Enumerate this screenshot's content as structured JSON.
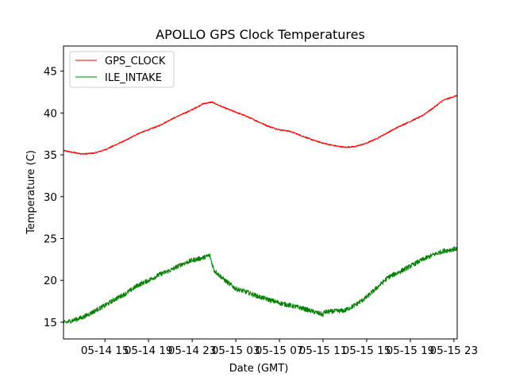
{
  "chart_data": {
    "type": "line",
    "title": "APOLLO GPS Clock Temperatures",
    "xlabel": "Date (GMT)",
    "ylabel": "Temperature (C)",
    "xlim": [
      11.2,
      47.3
    ],
    "ylim": [
      13.0,
      48.0
    ],
    "xticks": [
      {
        "value": 15,
        "label": "05-14 15"
      },
      {
        "value": 19,
        "label": "05-14 19"
      },
      {
        "value": 23,
        "label": "05-14 23"
      },
      {
        "value": 27,
        "label": "05-15 03"
      },
      {
        "value": 31,
        "label": "05-15 07"
      },
      {
        "value": 35,
        "label": "05-15 11"
      },
      {
        "value": 39,
        "label": "05-15 15"
      },
      {
        "value": 43,
        "label": "05-15 19"
      },
      {
        "value": 47,
        "label": "05-15 23"
      }
    ],
    "yticks": [
      {
        "value": 15,
        "label": "15"
      },
      {
        "value": 20,
        "label": "20"
      },
      {
        "value": 25,
        "label": "25"
      },
      {
        "value": 30,
        "label": "30"
      },
      {
        "value": 35,
        "label": "35"
      },
      {
        "value": 40,
        "label": "40"
      },
      {
        "value": 45,
        "label": "45"
      }
    ],
    "legend_position": "top-left",
    "series": [
      {
        "name": "GPS_CLOCK",
        "color": "#ff0000",
        "x": [
          11.2,
          12.0,
          13.0,
          14.0,
          15.0,
          16.0,
          17.0,
          18.0,
          19.0,
          20.0,
          21.0,
          22.0,
          23.0,
          24.0,
          24.8,
          26.0,
          27.0,
          28.0,
          29.0,
          30.0,
          31.0,
          32.0,
          33.0,
          34.0,
          35.0,
          36.0,
          37.0,
          38.0,
          39.0,
          40.0,
          41.0,
          42.0,
          43.0,
          44.0,
          45.0,
          46.0,
          47.3
        ],
        "values": [
          35.5,
          35.3,
          35.1,
          35.2,
          35.6,
          36.2,
          36.8,
          37.5,
          38.0,
          38.5,
          39.2,
          39.8,
          40.4,
          41.1,
          41.3,
          40.6,
          40.1,
          39.6,
          39.0,
          38.4,
          38.0,
          37.8,
          37.3,
          36.8,
          36.4,
          36.1,
          35.9,
          36.0,
          36.4,
          37.0,
          37.7,
          38.4,
          39.0,
          39.6,
          40.5,
          41.5,
          42.1
        ],
        "noise": 0.08
      },
      {
        "name": "ILE_INTAKE",
        "color": "#008000",
        "x": [
          11.2,
          12.0,
          13.0,
          14.0,
          15.0,
          16.0,
          17.0,
          18.0,
          19.0,
          20.0,
          21.0,
          22.0,
          23.0,
          24.0,
          24.6,
          25.0,
          26.0,
          27.0,
          28.0,
          29.0,
          30.0,
          31.0,
          32.0,
          33.0,
          34.0,
          35.0,
          35.1,
          36.0,
          37.0,
          38.0,
          39.0,
          40.0,
          41.0,
          42.0,
          43.0,
          44.0,
          45.0,
          46.0,
          47.3
        ],
        "values": [
          14.9,
          15.2,
          15.6,
          16.3,
          17.0,
          17.8,
          18.5,
          19.4,
          20.0,
          20.7,
          21.2,
          21.9,
          22.4,
          22.7,
          23.0,
          21.2,
          20.0,
          19.0,
          18.6,
          18.1,
          17.7,
          17.3,
          17.0,
          16.7,
          16.3,
          15.9,
          16.2,
          16.3,
          16.4,
          17.1,
          18.0,
          19.2,
          20.4,
          21.0,
          21.7,
          22.4,
          23.0,
          23.5,
          23.8
        ],
        "noise": 0.28
      }
    ]
  }
}
